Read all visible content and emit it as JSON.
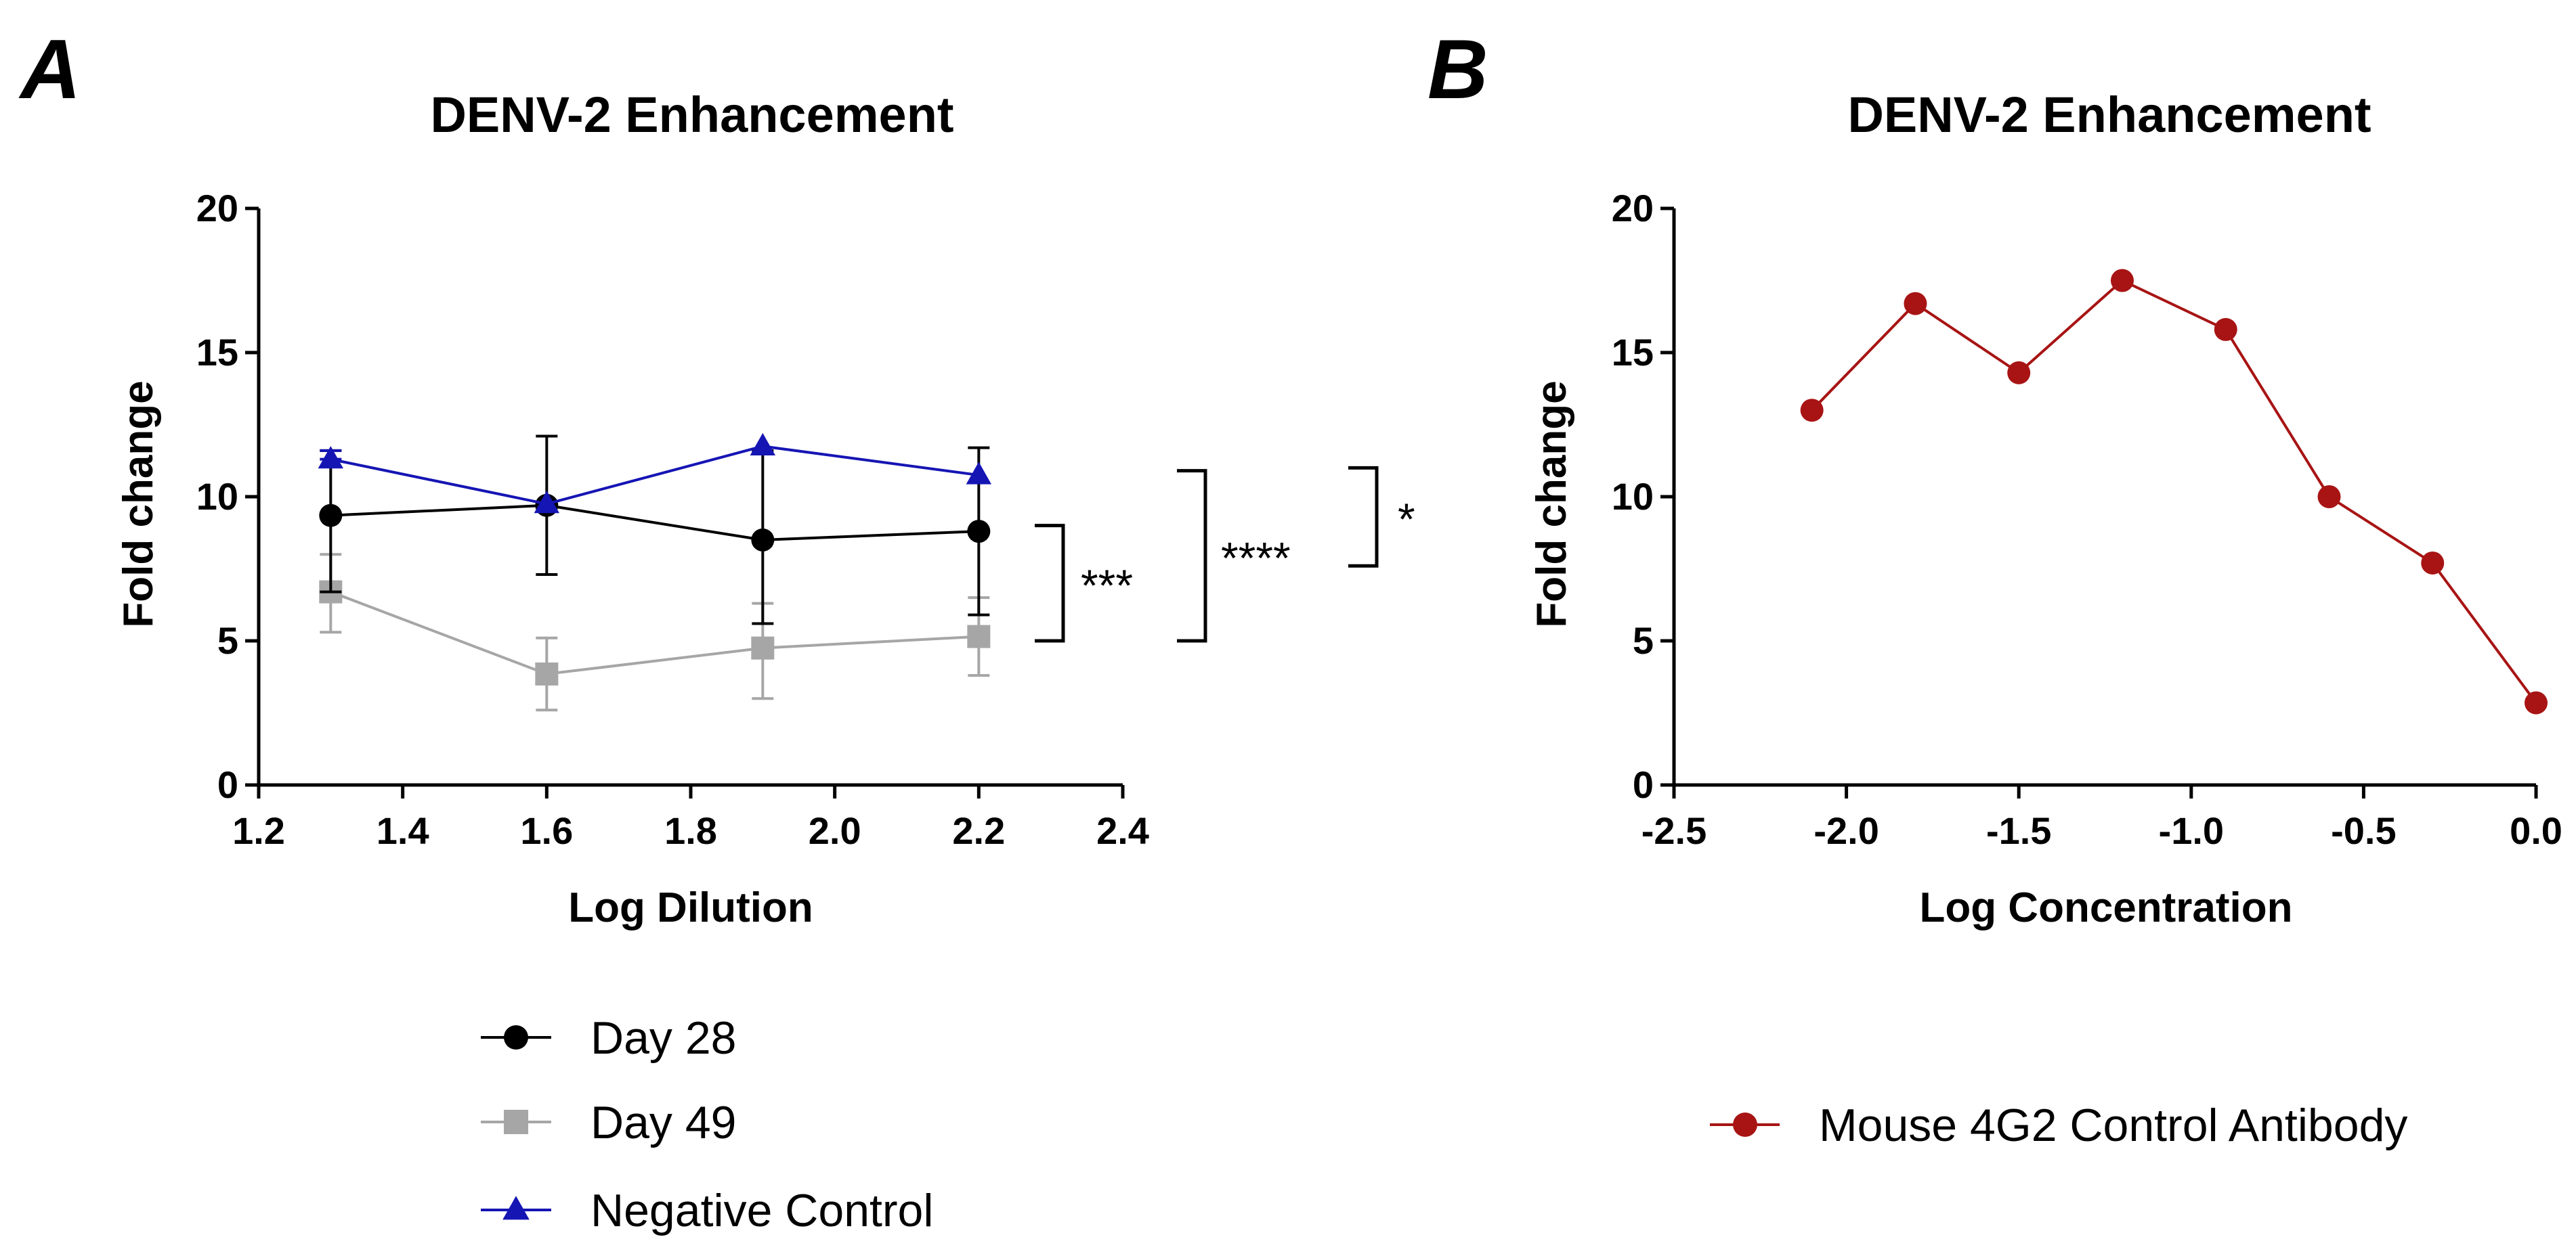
{
  "panels": [
    {
      "letter": "A"
    },
    {
      "letter": "B"
    }
  ],
  "chart_data": [
    {
      "type": "line",
      "title": "DENV-2 Enhancement",
      "xlabel": "Log Dilution",
      "ylabel": "Fold change",
      "xlim": [
        1.2,
        2.4
      ],
      "ylim": [
        0,
        20
      ],
      "xticks": [
        1.2,
        1.4,
        1.6,
        1.8,
        2.0,
        2.2,
        2.4
      ],
      "xtick_labels": [
        "1.2",
        "1.4",
        "1.6",
        "1.8",
        "2.0",
        "2.2",
        "2.4"
      ],
      "yticks": [
        0,
        5,
        10,
        15,
        20
      ],
      "ytick_labels": [
        "0",
        "5",
        "10",
        "15",
        "20"
      ],
      "legend_position": "bottom-center",
      "x": [
        1.3,
        1.6,
        1.9,
        2.2
      ],
      "series": [
        {
          "name": "Day 28",
          "color": "#000000",
          "marker": "circle",
          "values": [
            9.35,
            9.7,
            8.5,
            8.8
          ],
          "err_low": [
            6.7,
            7.3,
            5.6,
            5.9
          ],
          "err_high": [
            11.6,
            12.1,
            11.6,
            11.7
          ]
        },
        {
          "name": "Day 49",
          "color": "#a6a6a6",
          "marker": "square",
          "values": [
            6.7,
            3.85,
            4.75,
            5.15
          ],
          "err_low": [
            5.3,
            2.6,
            3.0,
            3.8
          ],
          "err_high": [
            8.0,
            5.1,
            6.3,
            6.5
          ]
        },
        {
          "name": "Negative Control",
          "color": "#1515b4",
          "marker": "triangle",
          "values": [
            11.3,
            9.75,
            11.75,
            10.75
          ],
          "err_low": [
            11.3,
            9.75,
            11.75,
            10.75
          ],
          "err_high": [
            11.6,
            9.75,
            11.75,
            10.75
          ]
        }
      ],
      "significance": [
        {
          "label": "***",
          "y_top": 9.0,
          "y_bottom": 5.0
        },
        {
          "label": "****",
          "y_top": 10.9,
          "y_bottom": 5.0
        },
        {
          "label": "*",
          "y_top": 11.0,
          "y_bottom": 7.6
        }
      ]
    },
    {
      "type": "line",
      "title": "DENV-2 Enhancement",
      "xlabel": "Log Concentration",
      "ylabel": "Fold change",
      "xlim": [
        -2.5,
        0.0
      ],
      "ylim": [
        0,
        20
      ],
      "xticks": [
        -2.5,
        -2.0,
        -1.5,
        -1.0,
        -0.5,
        0.0
      ],
      "xtick_labels": [
        "-2.5",
        "-2.0",
        "-1.5",
        "-1.0",
        "-0.5",
        "0.0"
      ],
      "yticks": [
        0,
        5,
        10,
        15,
        20
      ],
      "ytick_labels": [
        "0",
        "5",
        "10",
        "15",
        "20"
      ],
      "legend_position": "bottom-center",
      "series": [
        {
          "name": "Mouse 4G2 Control Antibody",
          "color": "#a81414",
          "marker": "circle",
          "x": [
            -2.1,
            -1.8,
            -1.5,
            -1.2,
            -0.9,
            -0.6,
            -0.3,
            0.0
          ],
          "values": [
            13.0,
            16.7,
            14.3,
            17.5,
            15.8,
            10.0,
            7.7,
            2.85
          ]
        }
      ]
    }
  ]
}
